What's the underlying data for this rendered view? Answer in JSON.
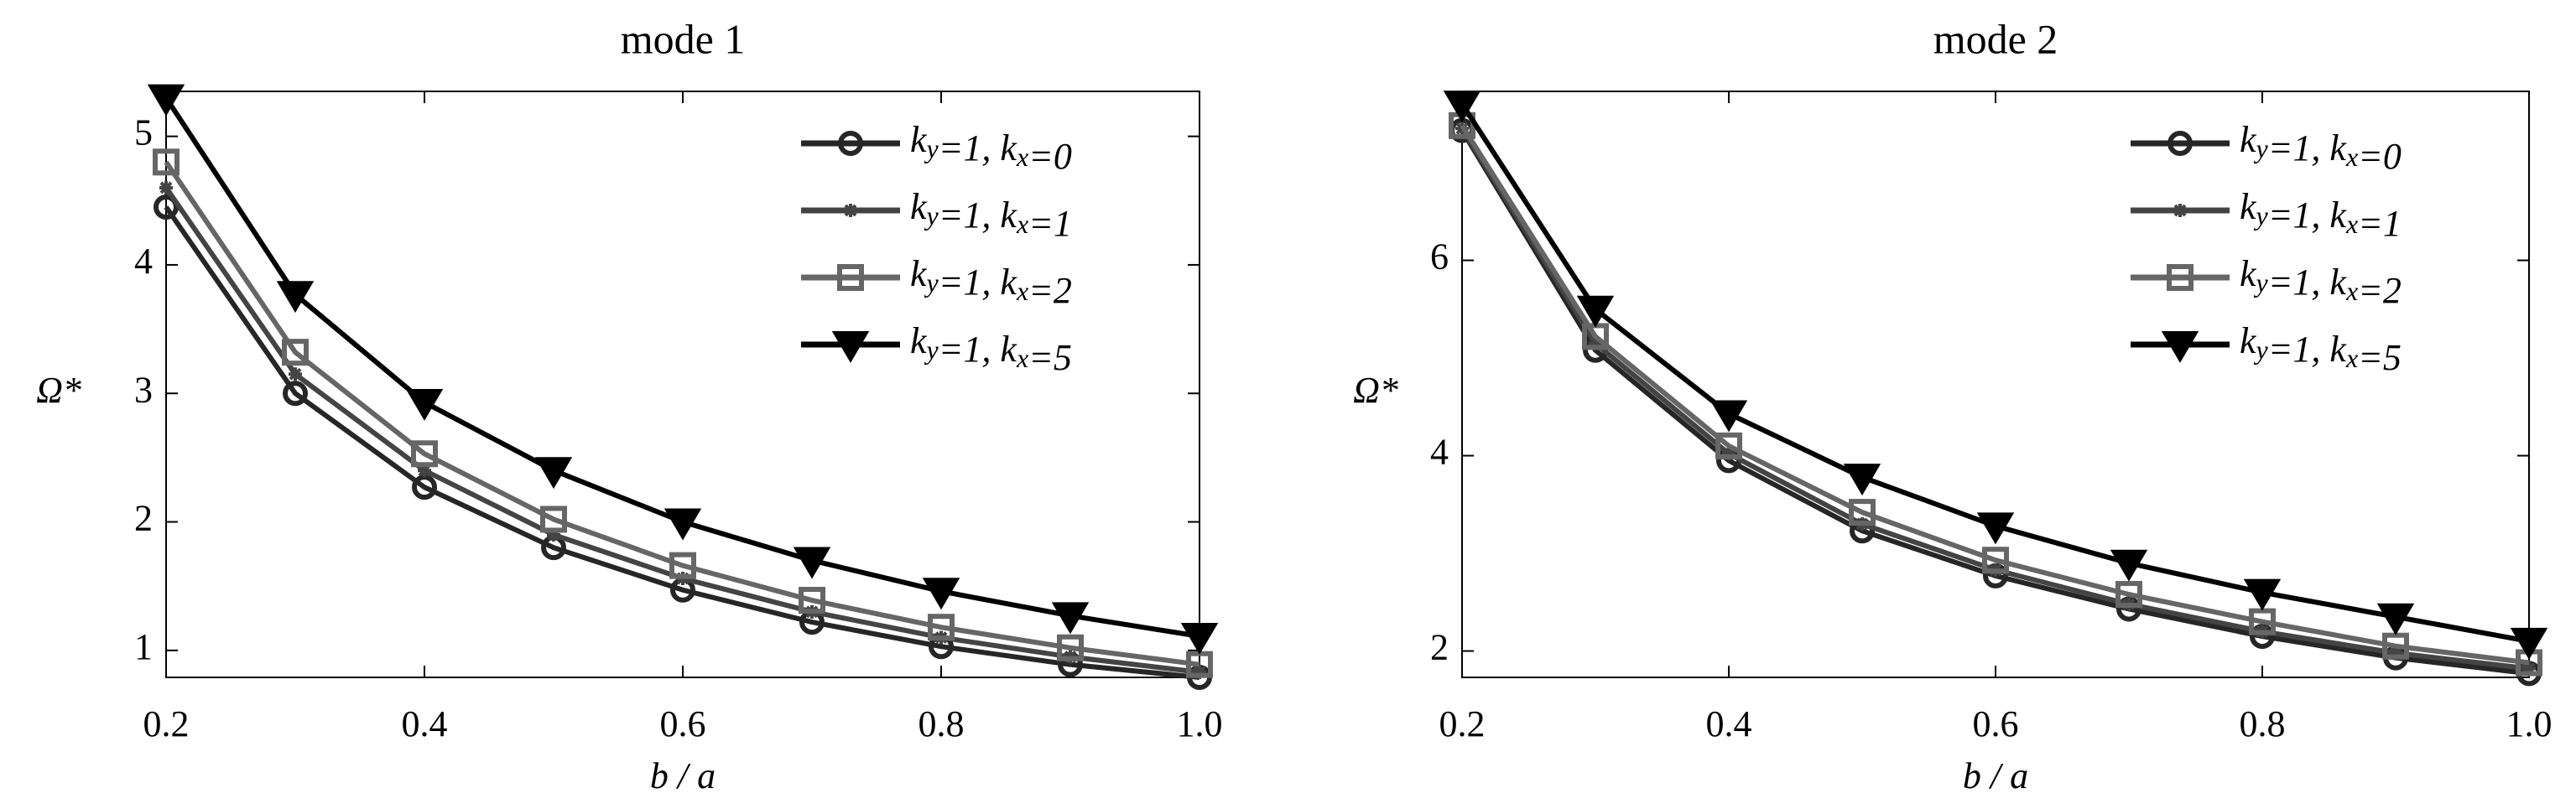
{
  "chart_data": [
    {
      "type": "line",
      "title": "mode 1",
      "xlabel": "b / a",
      "ylabel": "Ω*",
      "x": [
        0.2,
        0.3,
        0.4,
        0.5,
        0.6,
        0.7,
        0.8,
        0.9,
        1.0
      ],
      "xlim": [
        0.2,
        1.0
      ],
      "xticks": [
        0.2,
        0.4,
        0.6,
        0.8,
        {
          "value": 1.0,
          "label": "1.0"
        }
      ],
      "ylim": [
        0.79,
        5.35
      ],
      "yticks": [
        1,
        2,
        3,
        4,
        5
      ],
      "legend": "upper right",
      "series": [
        {
          "name": "ky=1, kx=0",
          "color": "#262626",
          "marker": "circle",
          "values": [
            4.45,
            3.0,
            2.27,
            1.8,
            1.47,
            1.22,
            1.03,
            0.89,
            0.79
          ]
        },
        {
          "name": "ky=1, kx=1",
          "color": "#444444",
          "marker": "star",
          "values": [
            4.6,
            3.15,
            2.4,
            1.9,
            1.56,
            1.3,
            1.1,
            0.95,
            0.83
          ]
        },
        {
          "name": "ky=1, kx=2",
          "color": "#666666",
          "marker": "square",
          "values": [
            4.8,
            3.32,
            2.53,
            2.02,
            1.66,
            1.39,
            1.18,
            1.02,
            0.89
          ]
        },
        {
          "name": "ky=1, kx=5",
          "color": "#000000",
          "marker": "triangle-down",
          "values": [
            5.3,
            3.77,
            2.93,
            2.4,
            2.0,
            1.7,
            1.46,
            1.27,
            1.11
          ]
        }
      ]
    },
    {
      "type": "line",
      "title": "mode 2",
      "xlabel": "b / a",
      "ylabel": "Ω*",
      "x": [
        0.2,
        0.3,
        0.4,
        0.5,
        0.6,
        0.7,
        0.8,
        0.9,
        1.0
      ],
      "xlim": [
        0.2,
        1.0
      ],
      "xticks": [
        0.2,
        0.4,
        0.6,
        0.8,
        {
          "value": 1.0,
          "label": "1.0"
        }
      ],
      "ylim": [
        1.73,
        7.73
      ],
      "yticks": [
        2,
        4,
        6
      ],
      "legend": "upper right",
      "series": [
        {
          "name": "ky=1, kx=0",
          "color": "#262626",
          "marker": "circle",
          "values": [
            7.33,
            5.08,
            3.95,
            3.23,
            2.77,
            2.43,
            2.15,
            1.93,
            1.77
          ]
        },
        {
          "name": "ky=1, kx=1",
          "color": "#444444",
          "marker": "star",
          "values": [
            7.35,
            5.15,
            4.02,
            3.3,
            2.83,
            2.48,
            2.2,
            1.98,
            1.82
          ]
        },
        {
          "name": "ky=1, kx=2",
          "color": "#666666",
          "marker": "square",
          "values": [
            7.38,
            5.22,
            4.1,
            3.42,
            2.93,
            2.58,
            2.3,
            2.05,
            1.88
          ]
        },
        {
          "name": "ky=1, kx=5",
          "color": "#000000",
          "marker": "triangle-down",
          "values": [
            7.6,
            5.5,
            4.43,
            3.78,
            3.28,
            2.9,
            2.6,
            2.35,
            2.1
          ]
        }
      ]
    }
  ]
}
